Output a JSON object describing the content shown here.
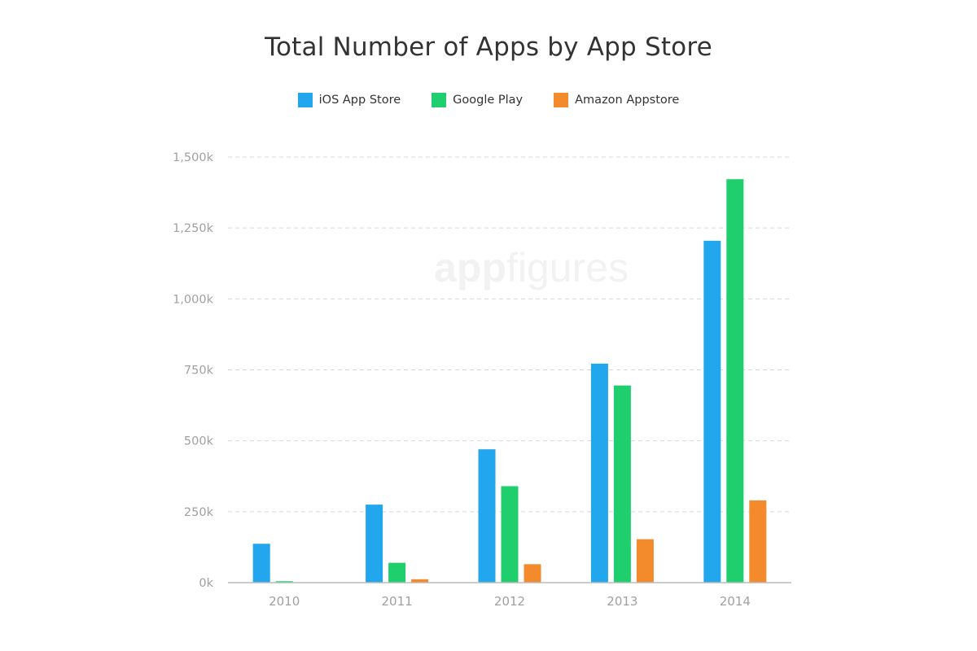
{
  "chart_data": {
    "type": "bar",
    "title": "Total Number of Apps by App Store",
    "categories": [
      "2010",
      "2011",
      "2012",
      "2013",
      "2014"
    ],
    "series": [
      {
        "name": "iOS App Store",
        "color": "#22a6ee",
        "values": [
          137,
          275,
          470,
          772,
          1205
        ]
      },
      {
        "name": "Google Play",
        "color": "#1fcf6e",
        "values": [
          5,
          70,
          340,
          695,
          1422
        ]
      },
      {
        "name": "Amazon Appstore",
        "color": "#f38a2c",
        "values": [
          0,
          12,
          65,
          153,
          290
        ]
      }
    ],
    "ylim": [
      0,
      1500
    ],
    "yticks": [
      0,
      250,
      500,
      750,
      1000,
      1250,
      1500
    ],
    "ytick_labels": [
      "0k",
      "250k",
      "500k",
      "750k",
      "1,000k",
      "1,250k",
      "1,500k"
    ],
    "xlabel": "",
    "ylabel": "",
    "grid": true,
    "legend_position": "top-center"
  },
  "watermark": {
    "part1": "app",
    "part2": "figures"
  }
}
